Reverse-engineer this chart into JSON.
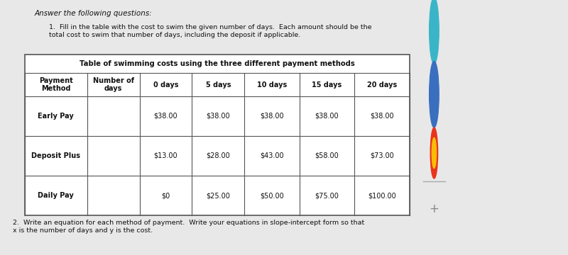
{
  "title": "Table of swimming costs using the three different payment methods",
  "col_headers": [
    "Payment\nMethod",
    "Number of\ndays",
    "0 days",
    "5 days",
    "10 days",
    "15 days",
    "20 days"
  ],
  "rows": [
    [
      "Early Pay",
      "",
      "$38.00",
      "$38.00",
      "$38.00",
      "$38.00",
      "$38.00"
    ],
    [
      "Deposit Plus",
      "",
      "$13.00",
      "$28.00",
      "$43.00",
      "$58.00",
      "$73.00"
    ],
    [
      "Daily Pay",
      "",
      "$0",
      "$25.00",
      "$50.00",
      "$75.00",
      "$100.00"
    ]
  ],
  "intro_text_1": "Answer the following questions:",
  "intro_text_2": "1.  Fill in the table with the cost to swim the given number of days.  Each amount should be the\ntotal cost to swim that number of days, including the deposit if applicable.",
  "footer_text": "2.  Write an equation for each method of payment.  Write your equations in slope-intercept form so that\nx is the number of days and y is the cost.",
  "main_bg": "#e8e8e8",
  "page_bg": "#d0d0d0",
  "sidebar_bg": "#e0e0e0",
  "dark_bg": "#1a1008",
  "border_color": "#555555",
  "text_color": "#111111",
  "left_strip_color": "#b0b0b0",
  "icon1_color": "#4a9fd4",
  "icon2_color": "#3a7abf",
  "plus_color": "#888888",
  "separator_color": "#aaaaaa"
}
